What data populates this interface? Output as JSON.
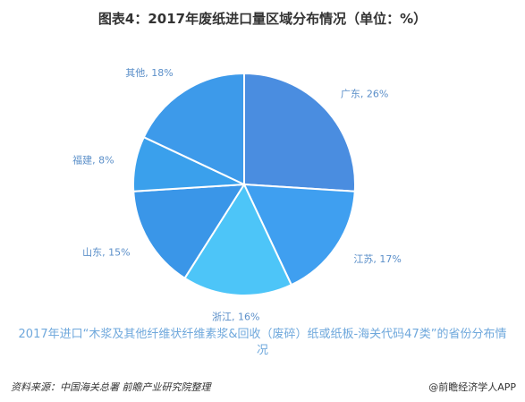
{
  "title": "图表4：2017年废纸进口量区域分布情况（单位：%）",
  "caption": "2017年进口“木浆及其他纤维状纤维素浆&回收（废碎）纸或纸板-海关代码47类”的省份分布情况",
  "footer": {
    "source": "资料来源：中国海关总署 前瞻产业研究院整理",
    "brand": "@前瞻经济学人APP"
  },
  "chart_data": {
    "type": "pie",
    "title": "图表4：2017年废纸进口量区域分布情况（单位：%）",
    "unit": "%",
    "slices": [
      {
        "label": "广东",
        "value": 26,
        "display": "广东, 26%",
        "color": "#4a8de0"
      },
      {
        "label": "江苏",
        "value": 17,
        "display": "江苏, 17%",
        "color": "#3f9ff0"
      },
      {
        "label": "浙江",
        "value": 16,
        "display": "浙江, 16%",
        "color": "#4dc5f8"
      },
      {
        "label": "山东",
        "value": 15,
        "display": "山东, 15%",
        "color": "#3a96e8"
      },
      {
        "label": "福建",
        "value": 8,
        "display": "福建, 8%",
        "color": "#3aa0ec"
      },
      {
        "label": "其他",
        "value": 18,
        "display": "其他, 18%",
        "color": "#3d9aea"
      }
    ],
    "label_color": "#5b8fc9"
  }
}
